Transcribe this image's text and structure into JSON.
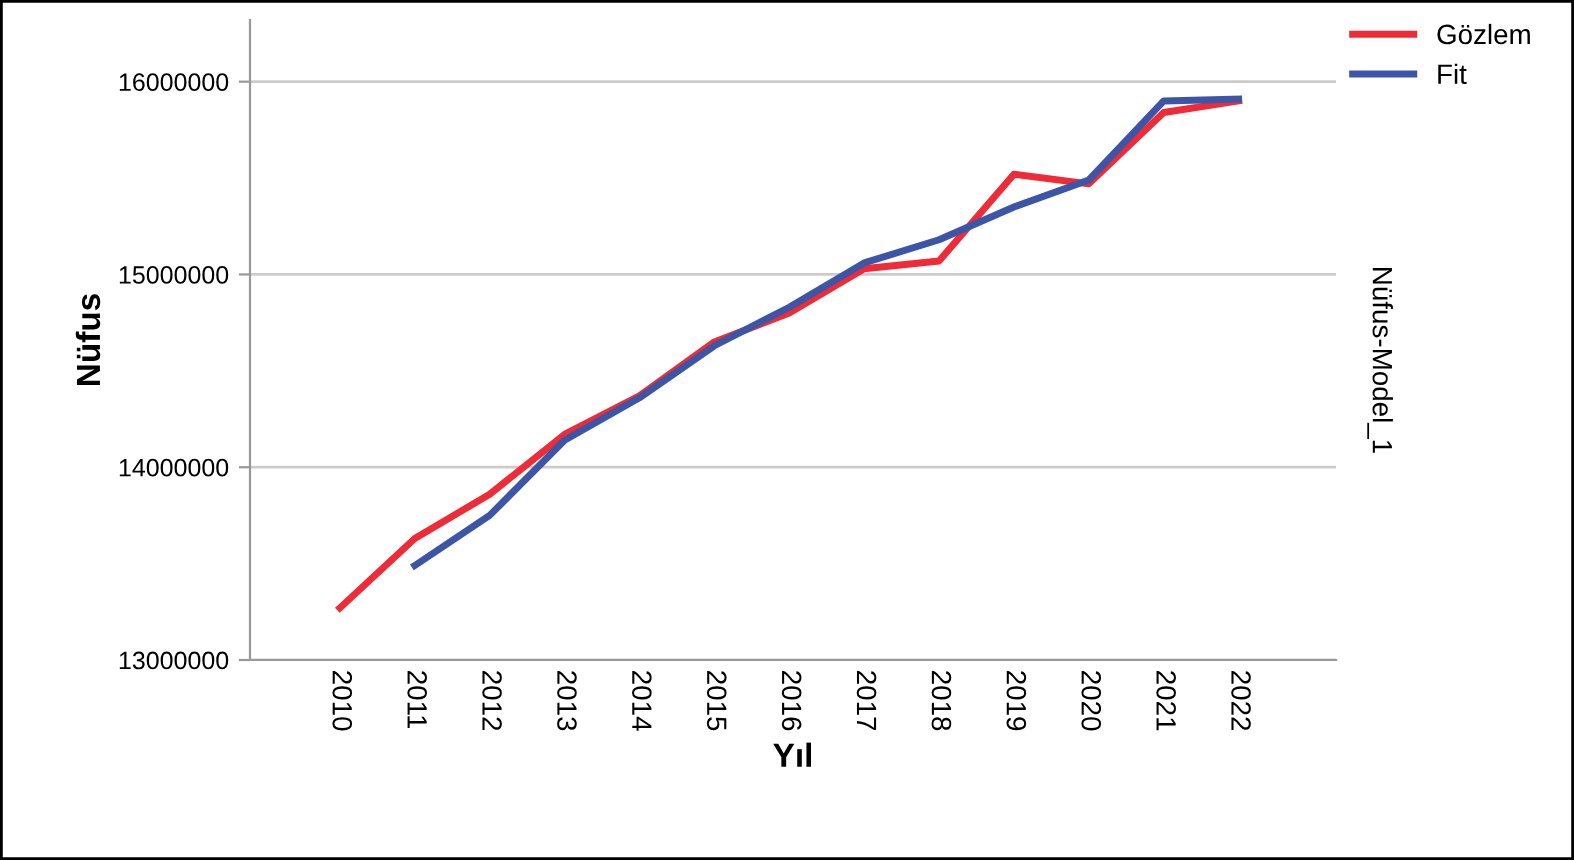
{
  "chart_data": {
    "type": "line",
    "xlabel": "Yıl",
    "ylabel": "Nüfus",
    "categories": [
      "2010",
      "2011",
      "2012",
      "2013",
      "2014",
      "2015",
      "2016",
      "2017",
      "2018",
      "2019",
      "2020",
      "2021",
      "2022"
    ],
    "series": [
      {
        "name": "Gözlem",
        "color": "#ee2b36",
        "values": [
          13270000,
          13630000,
          13860000,
          14170000,
          14370000,
          14650000,
          14800000,
          15030000,
          15070000,
          15520000,
          15470000,
          15840000,
          15900000
        ]
      },
      {
        "name": "Fit",
        "color": "#3d55a6",
        "values": [
          null,
          13490000,
          13750000,
          14140000,
          14360000,
          14630000,
          14830000,
          15060000,
          15180000,
          15350000,
          15490000,
          15900000,
          15910000
        ]
      }
    ],
    "ylim": [
      13000000,
      16320000
    ],
    "yticks": [
      13000000,
      14000000,
      15000000,
      16000000
    ],
    "grid": "y",
    "legend": "top right",
    "marker": "none",
    "line_style": "solid",
    "annotations": [
      "Nüfus-Model_1"
    ]
  }
}
